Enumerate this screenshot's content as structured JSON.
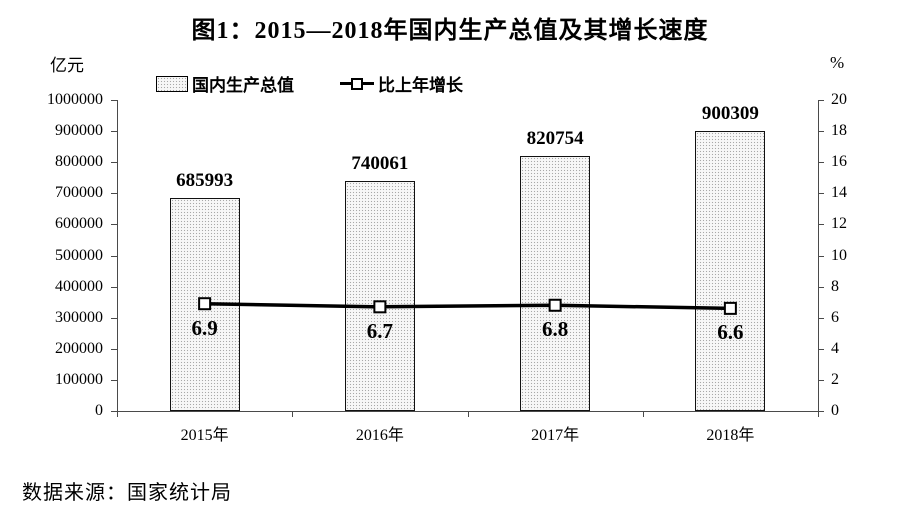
{
  "title": "图1：2015—2018年国内生产总值及其增长速度",
  "axes": {
    "left_unit": "亿元",
    "right_unit": "%"
  },
  "legend": {
    "bar_label": "国内生产总值",
    "line_label": "比上年增长"
  },
  "source_note": "数据来源：国家统计局",
  "chart_data": {
    "type": "bar",
    "title": "图1：2015—2018年国内生产总值及其增长速度",
    "categories": [
      "2015年",
      "2016年",
      "2017年",
      "2018年"
    ],
    "series": [
      {
        "name": "国内生产总值",
        "type": "bar",
        "axis": "left",
        "unit": "亿元",
        "values": [
          685993,
          740061,
          820754,
          900309
        ]
      },
      {
        "name": "比上年增长",
        "type": "line",
        "axis": "right",
        "unit": "%",
        "values": [
          6.9,
          6.7,
          6.8,
          6.6
        ]
      }
    ],
    "left_axis": {
      "label": "亿元",
      "min": 0,
      "max": 1000000,
      "step": 100000
    },
    "right_axis": {
      "label": "%",
      "min": 0,
      "max": 20,
      "step": 2
    },
    "grid": false,
    "legend_position": "top",
    "data_labels": true
  },
  "colors": {
    "text": "#000000",
    "axis": "#4a4a4a",
    "bar_fill": "#f7f7f7",
    "bar_dot": "#a8a8a8",
    "bar_border": "#111111",
    "line": "#000000",
    "marker_fill": "#ffffff"
  }
}
